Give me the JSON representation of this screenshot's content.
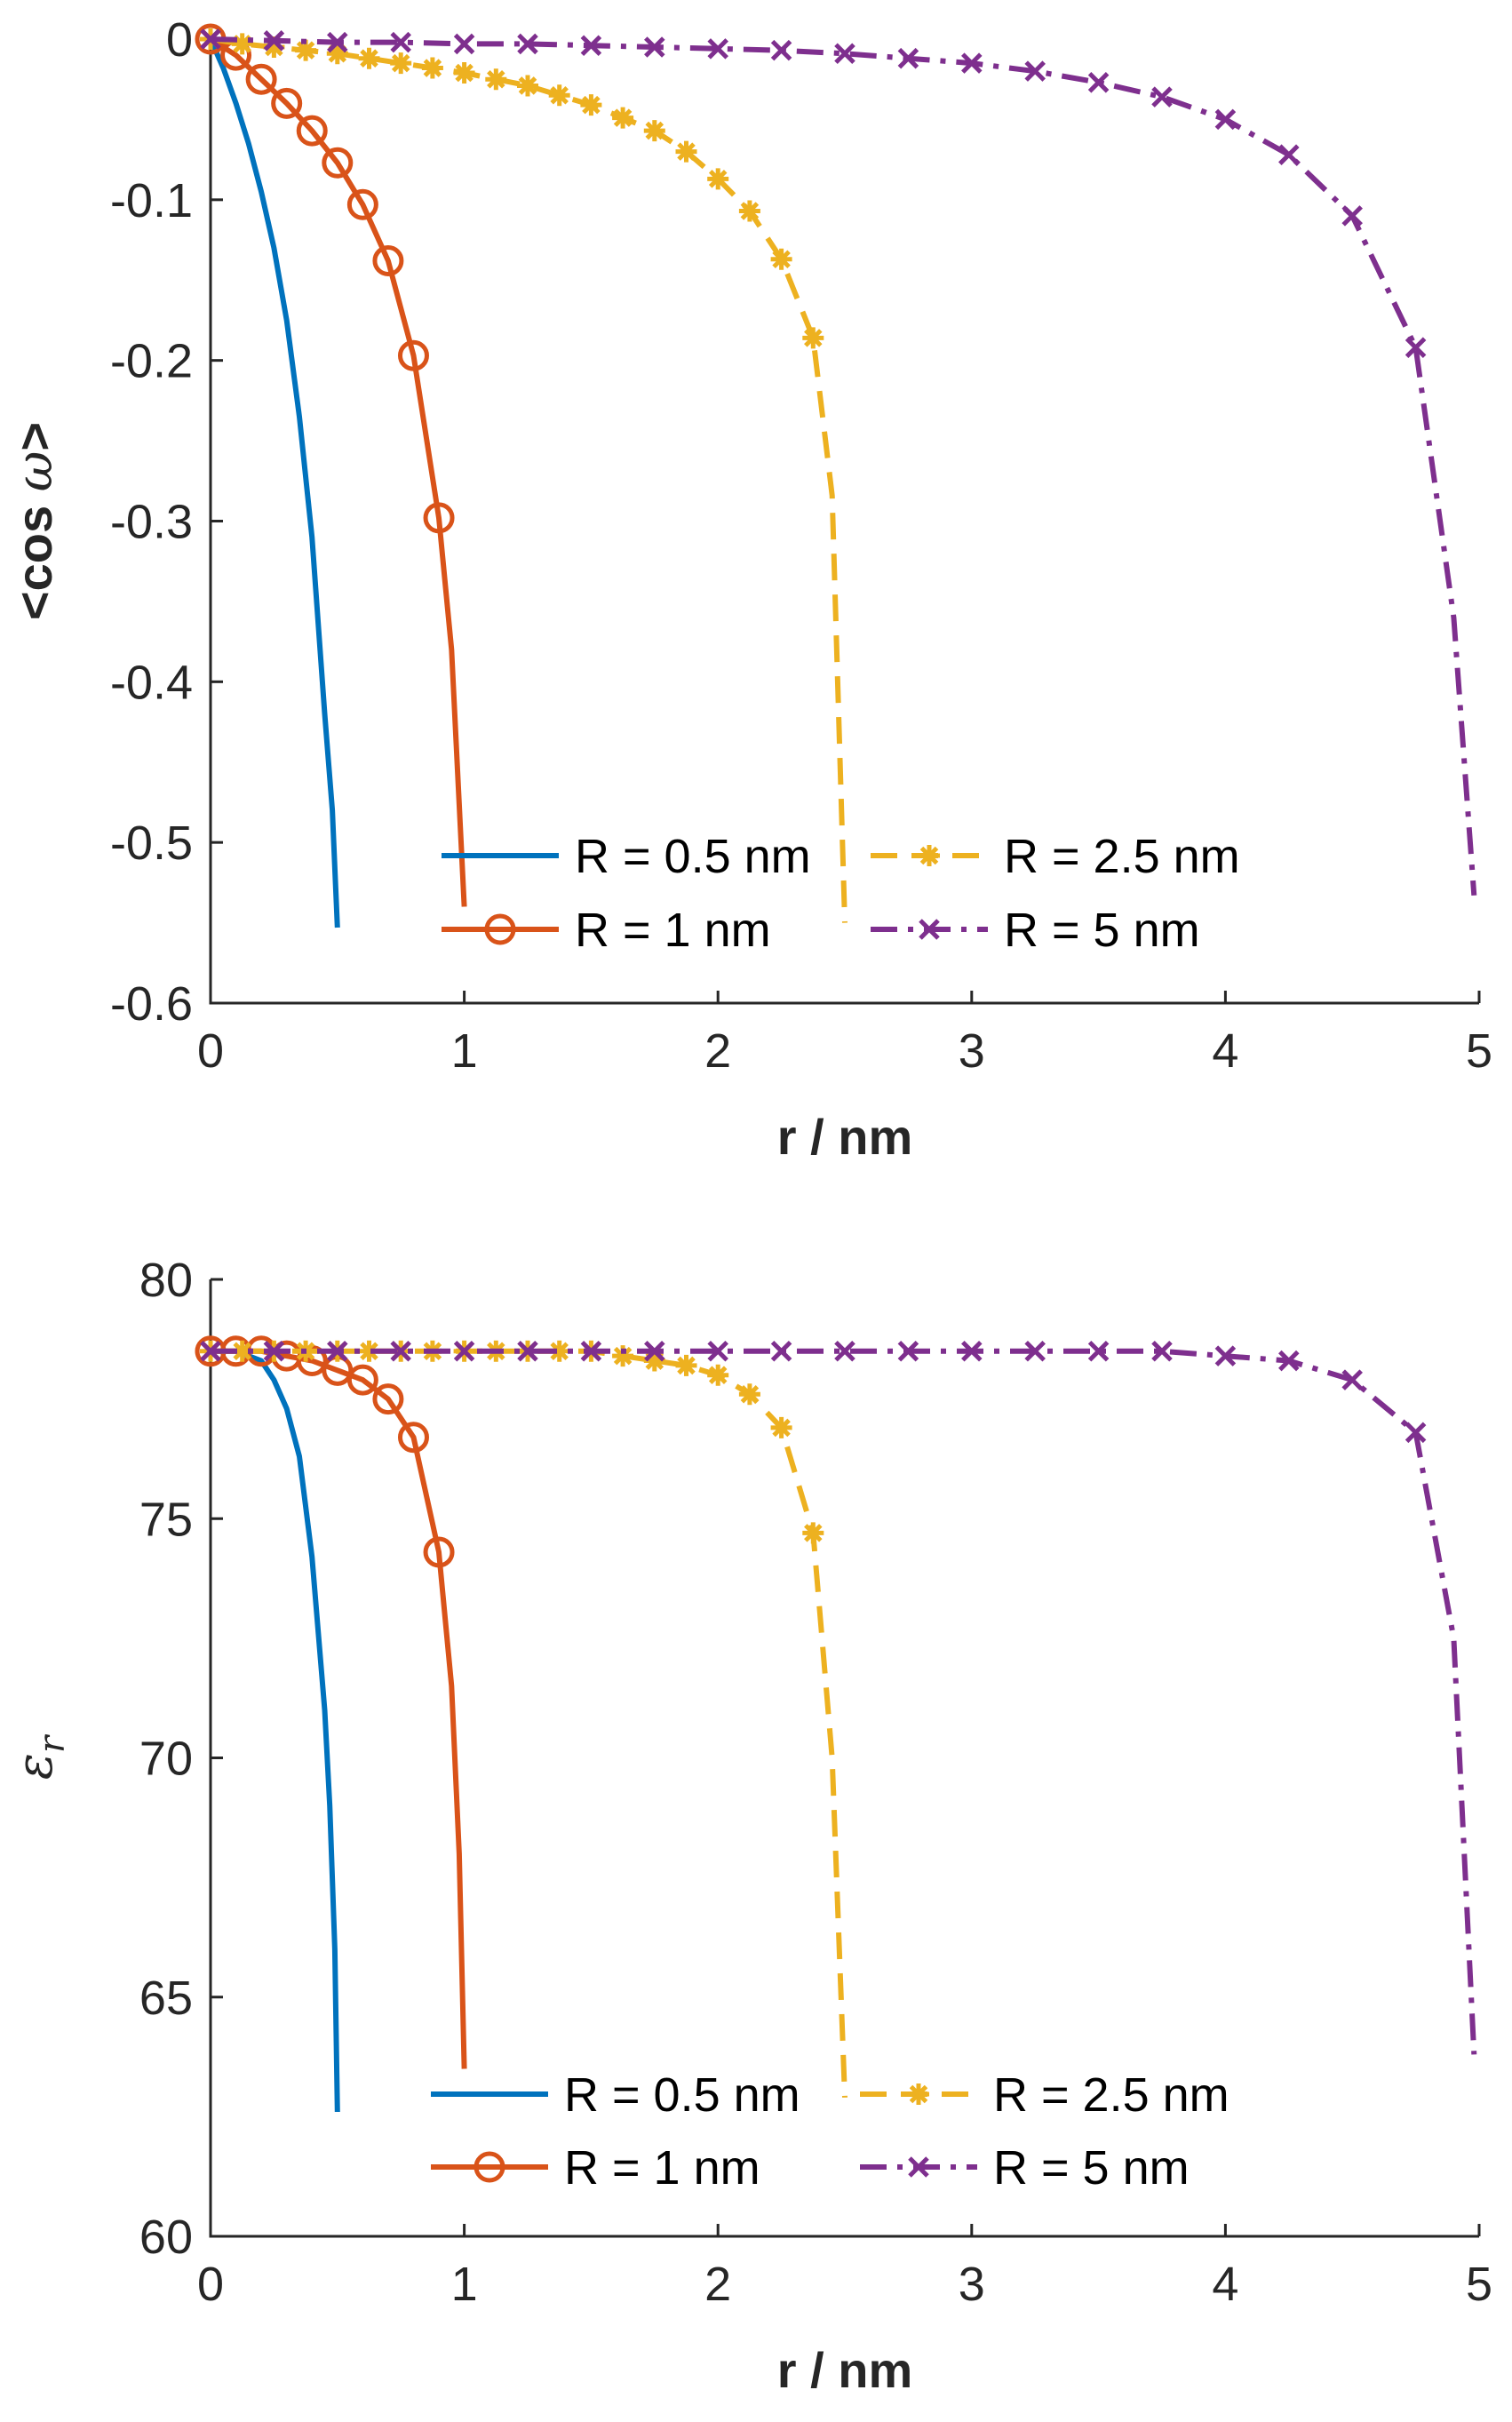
{
  "colors": {
    "blue": "#0072BD",
    "orange": "#D95319",
    "yellow": "#EDB120",
    "purple": "#7E2F8E",
    "axis": "#262626"
  },
  "chart_data": [
    {
      "id": "top",
      "type": "line",
      "title": "",
      "xlabel": "r / nm",
      "ylabel": "<cos ω>",
      "ylabel_main": "<cos ",
      "ylabel_symbol": "ω",
      "ylabel_end": ">",
      "xlim": [
        0,
        5
      ],
      "ylim": [
        -0.6,
        0
      ],
      "xticks": [
        0,
        1,
        2,
        3,
        4,
        5
      ],
      "xtick_labels": [
        "0",
        "1",
        "2",
        "3",
        "4",
        "5"
      ],
      "yticks": [
        0,
        -0.1,
        -0.2,
        -0.3,
        -0.4,
        -0.5,
        -0.6
      ],
      "ytick_labels": [
        "0",
        "-0.1",
        "-0.2",
        "-0.3",
        "-0.4",
        "-0.5",
        "-0.6"
      ],
      "legend_position": "bottom-center, two columns",
      "series": [
        {
          "name": "R = 0.5 nm",
          "color_key": "blue",
          "style": "solid",
          "marker": "none",
          "x": [
            0,
            0.05,
            0.1,
            0.15,
            0.2,
            0.25,
            0.3,
            0.35,
            0.4,
            0.45,
            0.48,
            0.5
          ],
          "y": [
            0,
            -0.018,
            -0.04,
            -0.065,
            -0.095,
            -0.13,
            -0.175,
            -0.235,
            -0.31,
            -0.42,
            -0.48,
            -0.553
          ]
        },
        {
          "name": "R = 1 nm",
          "color_key": "orange",
          "style": "solid",
          "marker": "circle",
          "x": [
            0,
            0.1,
            0.2,
            0.3,
            0.4,
            0.5,
            0.6,
            0.7,
            0.8,
            0.9,
            0.95,
            1.0
          ],
          "y": [
            0,
            -0.01,
            -0.025,
            -0.04,
            -0.057,
            -0.077,
            -0.103,
            -0.138,
            -0.197,
            -0.298,
            -0.38,
            -0.54
          ],
          "marker_x": [
            0,
            0.1,
            0.2,
            0.3,
            0.4,
            0.5,
            0.6,
            0.7,
            0.8,
            0.9
          ],
          "marker_y": [
            0,
            -0.01,
            -0.025,
            -0.04,
            -0.057,
            -0.077,
            -0.103,
            -0.138,
            -0.197,
            -0.298
          ]
        },
        {
          "name": "R = 2.5 nm",
          "color_key": "yellow",
          "style": "dashed",
          "marker": "star",
          "x": [
            0,
            0.125,
            0.25,
            0.375,
            0.5,
            0.625,
            0.75,
            0.875,
            1.0,
            1.125,
            1.25,
            1.375,
            1.5,
            1.625,
            1.75,
            1.875,
            2.0,
            2.125,
            2.25,
            2.375,
            2.45,
            2.5
          ],
          "y": [
            0,
            -0.003,
            -0.005,
            -0.007,
            -0.009,
            -0.012,
            -0.015,
            -0.018,
            -0.021,
            -0.025,
            -0.029,
            -0.035,
            -0.041,
            -0.049,
            -0.057,
            -0.07,
            -0.087,
            -0.107,
            -0.137,
            -0.186,
            -0.284,
            -0.55
          ],
          "marker_x": [
            0,
            0.125,
            0.25,
            0.375,
            0.5,
            0.625,
            0.75,
            0.875,
            1.0,
            1.125,
            1.25,
            1.375,
            1.5,
            1.625,
            1.75,
            1.875,
            2.0,
            2.125,
            2.25,
            2.375
          ],
          "marker_y": [
            0,
            -0.003,
            -0.005,
            -0.007,
            -0.009,
            -0.012,
            -0.015,
            -0.018,
            -0.021,
            -0.025,
            -0.029,
            -0.035,
            -0.041,
            -0.049,
            -0.057,
            -0.07,
            -0.087,
            -0.107,
            -0.137,
            -0.186
          ]
        },
        {
          "name": "R = 5 nm",
          "color_key": "purple",
          "style": "dashdot",
          "marker": "x",
          "x": [
            0,
            0.25,
            0.5,
            0.75,
            1.0,
            1.25,
            1.5,
            1.75,
            2.0,
            2.25,
            2.5,
            2.75,
            3.0,
            3.25,
            3.5,
            3.75,
            4.0,
            4.25,
            4.5,
            4.75,
            4.9,
            4.98
          ],
          "y": [
            0,
            -0.001,
            -0.002,
            -0.002,
            -0.003,
            -0.003,
            -0.004,
            -0.005,
            -0.006,
            -0.007,
            -0.009,
            -0.012,
            -0.015,
            -0.02,
            -0.027,
            -0.036,
            -0.05,
            -0.072,
            -0.11,
            -0.192,
            -0.36,
            -0.533
          ],
          "marker_x": [
            0,
            0.25,
            0.5,
            0.75,
            1.0,
            1.25,
            1.5,
            1.75,
            2.0,
            2.25,
            2.5,
            2.75,
            3.0,
            3.25,
            3.5,
            3.75,
            4.0,
            4.25,
            4.5,
            4.75
          ],
          "marker_y": [
            0,
            -0.001,
            -0.002,
            -0.002,
            -0.003,
            -0.003,
            -0.004,
            -0.005,
            -0.006,
            -0.007,
            -0.009,
            -0.012,
            -0.015,
            -0.02,
            -0.027,
            -0.036,
            -0.05,
            -0.072,
            -0.11,
            -0.192
          ]
        }
      ]
    },
    {
      "id": "bottom",
      "type": "line",
      "title": "",
      "xlabel": "r / nm",
      "ylabel": "εr",
      "ylabel_main": "ε",
      "ylabel_sub": "r",
      "xlim": [
        0,
        5
      ],
      "ylim": [
        60,
        80
      ],
      "xticks": [
        0,
        1,
        2,
        3,
        4,
        5
      ],
      "xtick_labels": [
        "0",
        "1",
        "2",
        "3",
        "4",
        "5"
      ],
      "yticks": [
        60,
        65,
        70,
        75,
        80
      ],
      "ytick_labels": [
        "60",
        "65",
        "70",
        "75",
        "80"
      ],
      "legend_position": "bottom-center, two columns",
      "series": [
        {
          "name": "R = 0.5 nm",
          "color_key": "blue",
          "style": "solid",
          "marker": "none",
          "x": [
            0,
            0.1,
            0.2,
            0.25,
            0.3,
            0.35,
            0.4,
            0.45,
            0.47,
            0.49,
            0.5
          ],
          "y": [
            78.5,
            78.5,
            78.3,
            77.9,
            77.3,
            76.3,
            74.2,
            71.0,
            69.0,
            66.0,
            62.6
          ],
          "marker_x": [],
          "marker_y": []
        },
        {
          "name": "R = 1 nm",
          "color_key": "orange",
          "style": "solid",
          "marker": "circle",
          "x": [
            0,
            0.1,
            0.2,
            0.3,
            0.4,
            0.5,
            0.6,
            0.7,
            0.8,
            0.9,
            0.95,
            0.98,
            1.0
          ],
          "y": [
            78.5,
            78.5,
            78.5,
            78.4,
            78.3,
            78.1,
            77.9,
            77.5,
            76.7,
            74.3,
            71.5,
            68.0,
            63.5
          ],
          "marker_x": [
            0,
            0.1,
            0.2,
            0.3,
            0.4,
            0.5,
            0.6,
            0.7,
            0.8,
            0.9
          ],
          "marker_y": [
            78.5,
            78.5,
            78.5,
            78.4,
            78.3,
            78.1,
            77.9,
            77.5,
            76.7,
            74.3
          ]
        },
        {
          "name": "R = 2.5 nm",
          "color_key": "yellow",
          "style": "dashed",
          "marker": "star",
          "x": [
            0,
            0.125,
            0.25,
            0.375,
            0.5,
            0.625,
            0.75,
            0.875,
            1.0,
            1.125,
            1.25,
            1.375,
            1.5,
            1.625,
            1.75,
            1.875,
            2.0,
            2.125,
            2.25,
            2.375,
            2.45,
            2.5
          ],
          "y": [
            78.5,
            78.5,
            78.5,
            78.5,
            78.5,
            78.5,
            78.5,
            78.5,
            78.5,
            78.5,
            78.5,
            78.5,
            78.5,
            78.4,
            78.3,
            78.2,
            78.0,
            77.6,
            76.9,
            74.7,
            70.0,
            62.9
          ],
          "marker_x": [
            0,
            0.125,
            0.25,
            0.375,
            0.5,
            0.625,
            0.75,
            0.875,
            1.0,
            1.125,
            1.25,
            1.375,
            1.5,
            1.625,
            1.75,
            1.875,
            2.0,
            2.125,
            2.25,
            2.375
          ],
          "marker_y": [
            78.5,
            78.5,
            78.5,
            78.5,
            78.5,
            78.5,
            78.5,
            78.5,
            78.5,
            78.5,
            78.5,
            78.5,
            78.5,
            78.4,
            78.3,
            78.2,
            78.0,
            77.6,
            76.9,
            74.7
          ]
        },
        {
          "name": "R = 5 nm",
          "color_key": "purple",
          "style": "dashdot",
          "marker": "x",
          "x": [
            0,
            0.25,
            0.5,
            0.75,
            1.0,
            1.25,
            1.5,
            1.75,
            2.0,
            2.25,
            2.5,
            2.75,
            3.0,
            3.25,
            3.5,
            3.75,
            4.0,
            4.25,
            4.5,
            4.75,
            4.9,
            4.98
          ],
          "y": [
            78.5,
            78.5,
            78.5,
            78.5,
            78.5,
            78.5,
            78.5,
            78.5,
            78.5,
            78.5,
            78.5,
            78.5,
            78.5,
            78.5,
            78.5,
            78.5,
            78.4,
            78.3,
            77.9,
            76.8,
            72.5,
            63.8
          ],
          "marker_x": [
            0,
            0.25,
            0.5,
            0.75,
            1.0,
            1.25,
            1.5,
            1.75,
            2.0,
            2.25,
            2.5,
            2.75,
            3.0,
            3.25,
            3.5,
            3.75,
            4.0,
            4.25,
            4.5,
            4.75
          ],
          "marker_y": [
            78.5,
            78.5,
            78.5,
            78.5,
            78.5,
            78.5,
            78.5,
            78.5,
            78.5,
            78.5,
            78.5,
            78.5,
            78.5,
            78.5,
            78.5,
            78.5,
            78.4,
            78.3,
            77.9,
            76.8
          ]
        }
      ]
    }
  ]
}
